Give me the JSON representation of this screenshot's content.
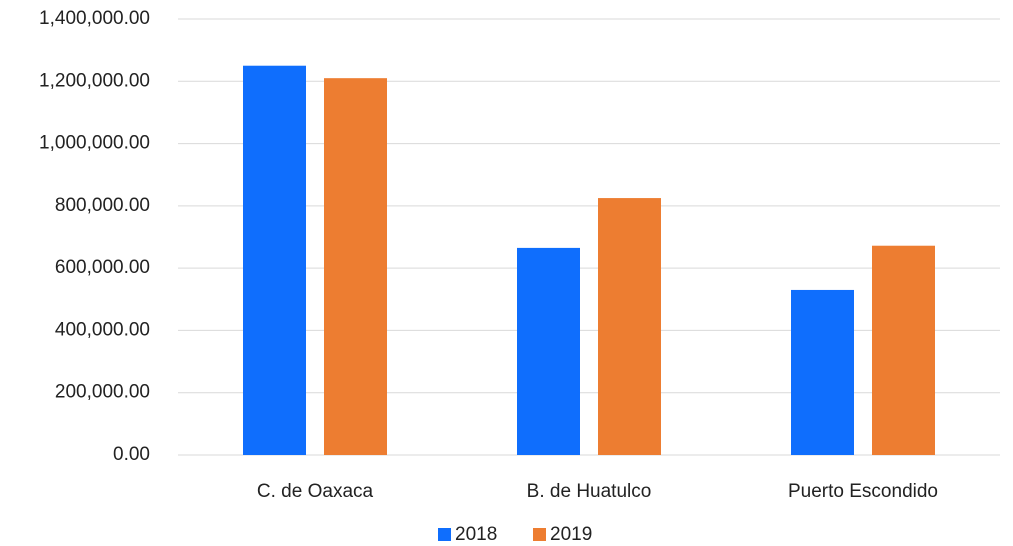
{
  "chart_data": {
    "type": "bar",
    "categories": [
      "C. de Oaxaca",
      "B. de Huatulco",
      "Puerto Escondido"
    ],
    "series": [
      {
        "name": "2018",
        "color": "#0f6efd",
        "values": [
          1250000,
          665000,
          530000
        ]
      },
      {
        "name": "2019",
        "color": "#ed7d31",
        "values": [
          1210000,
          825000,
          672000
        ]
      }
    ],
    "ylim": [
      0,
      1400000
    ],
    "yticks": [
      {
        "value": 0,
        "label": "0.00"
      },
      {
        "value": 200000,
        "label": "200,000.00"
      },
      {
        "value": 400000,
        "label": "400,000.00"
      },
      {
        "value": 600000,
        "label": "600,000.00"
      },
      {
        "value": 800000,
        "label": "800,000.00"
      },
      {
        "value": 1000000,
        "label": "1,000,000.00"
      },
      {
        "value": 1200000,
        "label": "1,200,000.00"
      },
      {
        "value": 1400000,
        "label": "1,400,000.00"
      }
    ],
    "grid": true,
    "legend": "bottom"
  }
}
